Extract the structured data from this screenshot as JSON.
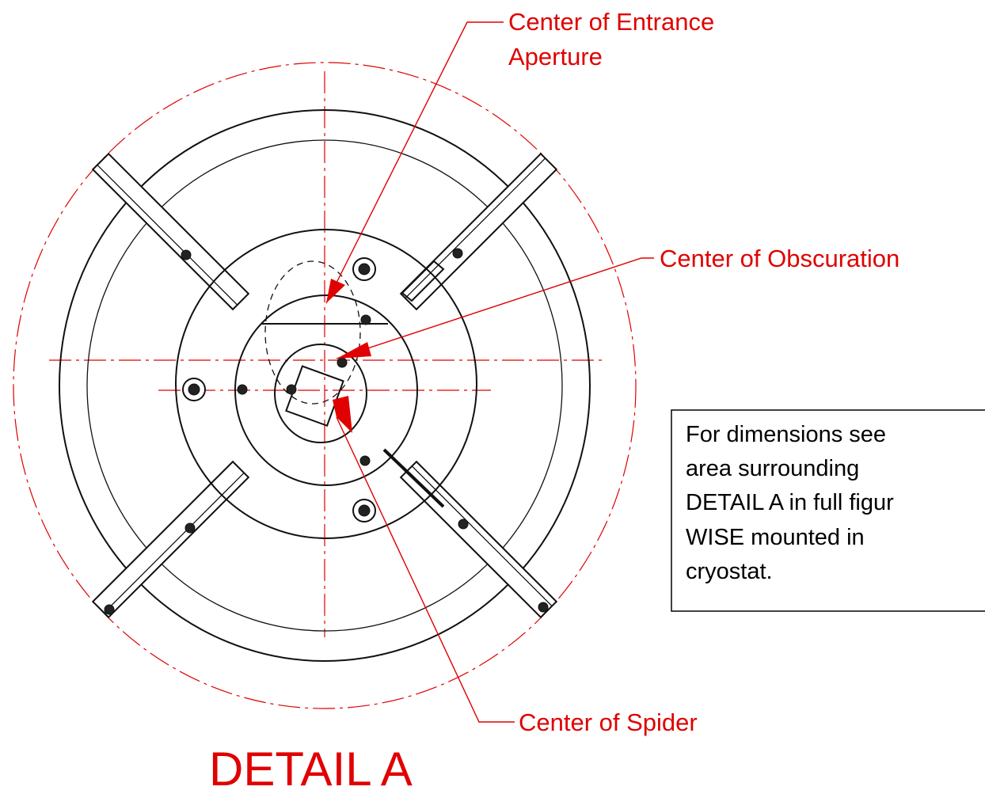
{
  "labels": {
    "entrance": [
      "Center of Entrance",
      "Aperture"
    ],
    "obscuration": "Center of Obscuration",
    "spider": "Center of Spider"
  },
  "title": "DETAIL A",
  "note": [
    "For dimensions see",
    "area surrounding",
    "DETAIL A in full figur",
    "WISE mounted in",
    "cryostat."
  ]
}
